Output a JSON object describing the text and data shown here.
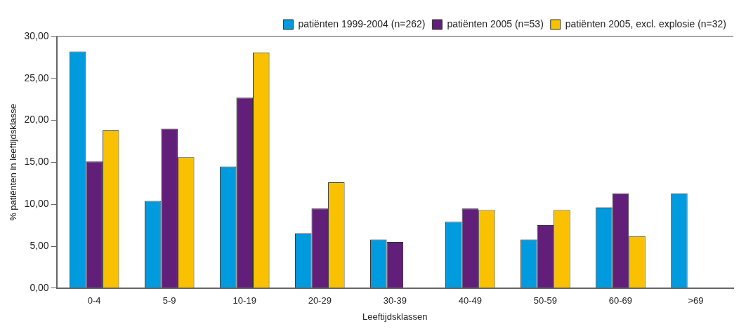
{
  "chart_data": {
    "type": "bar",
    "xlabel": "Leeftijdsklassen",
    "ylabel": "% patiënten in leeftijdsklasse",
    "categories": [
      "0-4",
      "5-9",
      "10-19",
      "20-29",
      "30-39",
      "40-49",
      "50-59",
      "60-69",
      ">69"
    ],
    "series": [
      {
        "name": "patiënten 1999-2004 (n=262)",
        "color": "#009ade",
        "values": [
          28.2,
          10.4,
          14.5,
          6.5,
          5.8,
          7.9,
          5.8,
          9.6,
          11.3
        ]
      },
      {
        "name": "patiënten 2005 (n=53)",
        "color": "#621f7a",
        "values": [
          15.1,
          19.0,
          22.7,
          9.5,
          5.5,
          9.5,
          7.5,
          11.3,
          null
        ]
      },
      {
        "name": "patiënten 2005, excl. explosie (n=32)",
        "color": "#f9c100",
        "values": [
          18.8,
          15.6,
          28.1,
          12.6,
          null,
          9.3,
          9.3,
          6.2,
          null
        ]
      }
    ],
    "ylim": [
      0,
      30
    ],
    "yticks": [
      {
        "value": 0,
        "label": "0,00"
      },
      {
        "value": 5,
        "label": "5,00"
      },
      {
        "value": 10,
        "label": "10,00"
      },
      {
        "value": 15,
        "label": "15,00"
      },
      {
        "value": 20,
        "label": "20,00"
      },
      {
        "value": 25,
        "label": "25,00"
      },
      {
        "value": 30,
        "label": "30,00"
      }
    ],
    "grid": false,
    "legend": "top right"
  }
}
